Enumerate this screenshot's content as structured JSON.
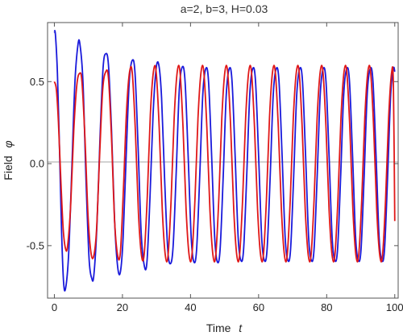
{
  "chart_data": {
    "type": "line",
    "title": "a=2, b=3, H=0.03",
    "xlabel_text": "Time",
    "xlabel_symbol": "t",
    "ylabel_text": "Field",
    "ylabel_symbol": "φ",
    "xlim": [
      -2,
      101
    ],
    "ylim": [
      -0.82,
      0.86
    ],
    "xticks": [
      0,
      20,
      40,
      60,
      80,
      100
    ],
    "xtick_labels": [
      "0",
      "20",
      "40",
      "60",
      "80",
      "100"
    ],
    "yticks": [
      -0.5,
      0.0,
      0.5
    ],
    "ytick_labels": [
      "-0.5",
      "0.0",
      "0.5"
    ],
    "grid": false,
    "series": [
      {
        "color": "#1a1adb",
        "points": [
          [
            0,
            0.8
          ],
          [
            0.3,
            0.79
          ],
          [
            0.9,
            0.55
          ],
          [
            1.5,
            0.1
          ],
          [
            2.1,
            -0.4
          ],
          [
            2.7,
            -0.72
          ],
          [
            3.3,
            -0.76
          ],
          [
            4.2,
            -0.55
          ],
          [
            5.1,
            -0.05
          ],
          [
            6.0,
            0.48
          ],
          [
            6.9,
            0.72
          ],
          [
            7.5,
            0.73
          ],
          [
            8.4,
            0.5
          ],
          [
            9.3,
            -0.1
          ],
          [
            10.2,
            -0.58
          ],
          [
            11.0,
            -0.7
          ],
          [
            11.6,
            -0.68
          ],
          [
            12.5,
            -0.38
          ],
          [
            13.4,
            0.15
          ],
          [
            14.3,
            0.58
          ],
          [
            15.1,
            0.67
          ],
          [
            15.9,
            0.6
          ],
          [
            16.8,
            0.2
          ],
          [
            17.7,
            -0.35
          ],
          [
            18.6,
            -0.63
          ],
          [
            19.4,
            -0.66
          ],
          [
            20.2,
            -0.45
          ],
          [
            21.1,
            0.05
          ],
          [
            22.0,
            0.5
          ],
          [
            22.9,
            0.63
          ],
          [
            23.7,
            0.55
          ],
          [
            24.6,
            0.1
          ],
          [
            25.5,
            -0.42
          ],
          [
            26.4,
            -0.62
          ],
          [
            27.2,
            -0.6
          ],
          [
            28.1,
            -0.2
          ],
          [
            29.0,
            0.3
          ],
          [
            29.9,
            0.58
          ],
          [
            30.7,
            0.6
          ],
          [
            31.5,
            0.4
          ],
          [
            32.4,
            -0.1
          ],
          [
            33.3,
            -0.52
          ],
          [
            34.1,
            -0.61
          ],
          [
            34.9,
            -0.5
          ],
          [
            35.8,
            -0.05
          ],
          [
            36.7,
            0.45
          ],
          [
            37.6,
            0.59
          ],
          [
            38.4,
            0.5
          ],
          [
            39.3,
            0.05
          ],
          [
            40.2,
            -0.45
          ],
          [
            41.0,
            -0.6
          ],
          [
            41.8,
            -0.52
          ],
          [
            42.7,
            -0.08
          ],
          [
            43.6,
            0.42
          ],
          [
            44.5,
            0.58
          ],
          [
            45.3,
            0.5
          ],
          [
            46.2,
            0.05
          ],
          [
            47.1,
            -0.45
          ],
          [
            47.9,
            -0.6
          ],
          [
            48.7,
            -0.52
          ],
          [
            49.6,
            -0.08
          ],
          [
            50.5,
            0.42
          ],
          [
            51.4,
            0.58
          ],
          [
            52.2,
            0.5
          ],
          [
            53.1,
            0.05
          ],
          [
            54.0,
            -0.45
          ],
          [
            54.8,
            -0.59
          ],
          [
            55.6,
            -0.52
          ],
          [
            56.5,
            -0.08
          ],
          [
            57.4,
            0.42
          ],
          [
            58.3,
            0.58
          ],
          [
            59.1,
            0.5
          ],
          [
            60.0,
            0.05
          ],
          [
            60.9,
            -0.45
          ],
          [
            61.7,
            -0.59
          ],
          [
            62.5,
            -0.52
          ],
          [
            63.4,
            -0.08
          ],
          [
            64.3,
            0.42
          ],
          [
            65.2,
            0.58
          ],
          [
            66.0,
            0.5
          ],
          [
            66.9,
            0.05
          ],
          [
            67.8,
            -0.45
          ],
          [
            68.6,
            -0.59
          ],
          [
            69.4,
            -0.52
          ],
          [
            70.3,
            -0.08
          ],
          [
            71.2,
            0.42
          ],
          [
            72.1,
            0.58
          ],
          [
            72.9,
            0.5
          ],
          [
            73.8,
            0.05
          ],
          [
            74.7,
            -0.45
          ],
          [
            75.5,
            -0.59
          ],
          [
            76.3,
            -0.52
          ],
          [
            77.2,
            -0.08
          ],
          [
            78.1,
            0.42
          ],
          [
            79.0,
            0.58
          ],
          [
            79.8,
            0.5
          ],
          [
            80.7,
            0.05
          ],
          [
            81.6,
            -0.45
          ],
          [
            82.4,
            -0.59
          ],
          [
            83.2,
            -0.52
          ],
          [
            84.1,
            -0.08
          ],
          [
            85.0,
            0.42
          ],
          [
            85.9,
            0.58
          ],
          [
            86.7,
            0.5
          ],
          [
            87.6,
            0.05
          ],
          [
            88.5,
            -0.45
          ],
          [
            89.3,
            -0.59
          ],
          [
            90.1,
            -0.52
          ],
          [
            91.0,
            -0.08
          ],
          [
            91.9,
            0.42
          ],
          [
            92.8,
            0.58
          ],
          [
            93.6,
            0.5
          ],
          [
            94.5,
            0.05
          ],
          [
            95.4,
            -0.45
          ],
          [
            96.2,
            -0.59
          ],
          [
            97.0,
            -0.52
          ],
          [
            97.9,
            -0.08
          ],
          [
            98.8,
            0.42
          ],
          [
            99.6,
            0.58
          ],
          [
            100.0,
            0.56
          ]
        ]
      },
      {
        "color": "#e01818",
        "points": [
          [
            0,
            0.5
          ],
          [
            0.6,
            0.45
          ],
          [
            1.2,
            0.25
          ],
          [
            1.9,
            -0.1
          ],
          [
            2.6,
            -0.4
          ],
          [
            3.3,
            -0.52
          ],
          [
            3.9,
            -0.5
          ],
          [
            4.8,
            -0.25
          ],
          [
            5.7,
            0.2
          ],
          [
            6.6,
            0.48
          ],
          [
            7.4,
            0.55
          ],
          [
            8.1,
            0.5
          ],
          [
            9.0,
            0.15
          ],
          [
            9.9,
            -0.32
          ],
          [
            10.8,
            -0.55
          ],
          [
            11.6,
            -0.56
          ],
          [
            12.4,
            -0.4
          ],
          [
            13.3,
            0.05
          ],
          [
            14.2,
            0.45
          ],
          [
            15.1,
            0.56
          ],
          [
            15.9,
            0.52
          ],
          [
            16.8,
            0.15
          ],
          [
            17.7,
            -0.35
          ],
          [
            18.6,
            -0.56
          ],
          [
            19.4,
            -0.54
          ],
          [
            20.3,
            -0.15
          ],
          [
            21.2,
            0.32
          ],
          [
            22.1,
            0.56
          ],
          [
            22.9,
            0.55
          ],
          [
            23.8,
            0.2
          ],
          [
            24.7,
            -0.3
          ],
          [
            25.6,
            -0.56
          ],
          [
            26.4,
            -0.55
          ],
          [
            27.3,
            -0.2
          ],
          [
            28.2,
            0.3
          ],
          [
            29.1,
            0.56
          ],
          [
            29.9,
            0.56
          ],
          [
            30.8,
            0.22
          ],
          [
            31.7,
            -0.28
          ],
          [
            32.6,
            -0.56
          ],
          [
            33.4,
            -0.56
          ],
          [
            34.3,
            -0.22
          ],
          [
            35.2,
            0.28
          ],
          [
            36.1,
            0.56
          ],
          [
            36.9,
            0.56
          ],
          [
            37.8,
            0.22
          ],
          [
            38.7,
            -0.28
          ],
          [
            39.6,
            -0.56
          ],
          [
            40.4,
            -0.56
          ],
          [
            41.3,
            -0.22
          ],
          [
            42.2,
            0.28
          ],
          [
            43.1,
            0.56
          ],
          [
            43.9,
            0.56
          ],
          [
            44.8,
            0.22
          ],
          [
            45.7,
            -0.28
          ],
          [
            46.6,
            -0.56
          ],
          [
            47.4,
            -0.56
          ],
          [
            48.3,
            -0.22
          ],
          [
            49.2,
            0.28
          ],
          [
            50.1,
            0.56
          ],
          [
            50.9,
            0.56
          ],
          [
            51.8,
            0.22
          ],
          [
            52.7,
            -0.28
          ],
          [
            53.6,
            -0.56
          ],
          [
            54.4,
            -0.56
          ],
          [
            55.3,
            -0.22
          ],
          [
            56.2,
            0.28
          ],
          [
            57.1,
            0.56
          ],
          [
            57.9,
            0.56
          ],
          [
            58.8,
            0.22
          ],
          [
            59.7,
            -0.28
          ],
          [
            60.6,
            -0.56
          ],
          [
            61.4,
            -0.56
          ],
          [
            62.3,
            -0.22
          ],
          [
            63.2,
            0.28
          ],
          [
            64.1,
            0.56
          ],
          [
            64.9,
            0.56
          ],
          [
            65.8,
            0.22
          ],
          [
            66.7,
            -0.28
          ],
          [
            67.6,
            -0.56
          ],
          [
            68.4,
            -0.56
          ],
          [
            69.3,
            -0.22
          ],
          [
            70.2,
            0.28
          ],
          [
            71.1,
            0.56
          ],
          [
            71.9,
            0.56
          ],
          [
            72.8,
            0.22
          ],
          [
            73.7,
            -0.28
          ],
          [
            74.6,
            -0.56
          ],
          [
            75.4,
            -0.56
          ],
          [
            76.3,
            -0.22
          ],
          [
            77.2,
            0.28
          ],
          [
            78.1,
            0.56
          ],
          [
            78.9,
            0.56
          ],
          [
            79.8,
            0.22
          ],
          [
            80.7,
            -0.28
          ],
          [
            81.6,
            -0.56
          ],
          [
            82.4,
            -0.56
          ],
          [
            83.3,
            -0.22
          ],
          [
            84.2,
            0.28
          ],
          [
            85.1,
            0.56
          ],
          [
            85.9,
            0.56
          ],
          [
            86.8,
            0.22
          ],
          [
            87.7,
            -0.28
          ],
          [
            88.6,
            -0.56
          ],
          [
            89.4,
            -0.56
          ],
          [
            90.3,
            -0.22
          ],
          [
            91.2,
            0.28
          ],
          [
            92.1,
            0.56
          ],
          [
            92.9,
            0.56
          ],
          [
            93.8,
            0.22
          ],
          [
            94.7,
            -0.28
          ],
          [
            95.6,
            -0.56
          ],
          [
            96.4,
            -0.56
          ],
          [
            97.3,
            -0.22
          ],
          [
            98.2,
            0.28
          ],
          [
            99.1,
            0.56
          ],
          [
            99.6,
            0.48
          ],
          [
            100.0,
            -0.35
          ]
        ]
      }
    ]
  }
}
